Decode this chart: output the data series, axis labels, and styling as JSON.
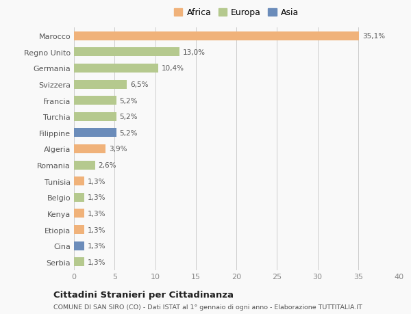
{
  "categories": [
    "Serbia",
    "Cina",
    "Etiopia",
    "Kenya",
    "Belgio",
    "Tunisia",
    "Romania",
    "Algeria",
    "Filippine",
    "Turchia",
    "Francia",
    "Svizzera",
    "Germania",
    "Regno Unito",
    "Marocco"
  ],
  "values": [
    1.3,
    1.3,
    1.3,
    1.3,
    1.3,
    1.3,
    2.6,
    3.9,
    5.2,
    5.2,
    5.2,
    6.5,
    10.4,
    13.0,
    35.1
  ],
  "labels": [
    "1,3%",
    "1,3%",
    "1,3%",
    "1,3%",
    "1,3%",
    "1,3%",
    "2,6%",
    "3,9%",
    "5,2%",
    "5,2%",
    "5,2%",
    "6,5%",
    "10,4%",
    "13,0%",
    "35,1%"
  ],
  "colors": [
    "#b5c98e",
    "#6b8cba",
    "#f0b27a",
    "#f0b27a",
    "#b5c98e",
    "#f0b27a",
    "#b5c98e",
    "#f0b27a",
    "#6b8cba",
    "#b5c98e",
    "#b5c98e",
    "#b5c98e",
    "#b5c98e",
    "#b5c98e",
    "#f0b27a"
  ],
  "continent_colors": {
    "Africa": "#f0b27a",
    "Europa": "#b5c98e",
    "Asia": "#6b8cba"
  },
  "xlim": [
    0,
    40
  ],
  "xticks": [
    0,
    5,
    10,
    15,
    20,
    25,
    30,
    35,
    40
  ],
  "title": "Cittadini Stranieri per Cittadinanza",
  "subtitle": "COMUNE DI SAN SIRO (CO) - Dati ISTAT al 1° gennaio di ogni anno - Elaborazione TUTTITALIA.IT",
  "bg_color": "#f9f9f9",
  "bar_height": 0.55
}
